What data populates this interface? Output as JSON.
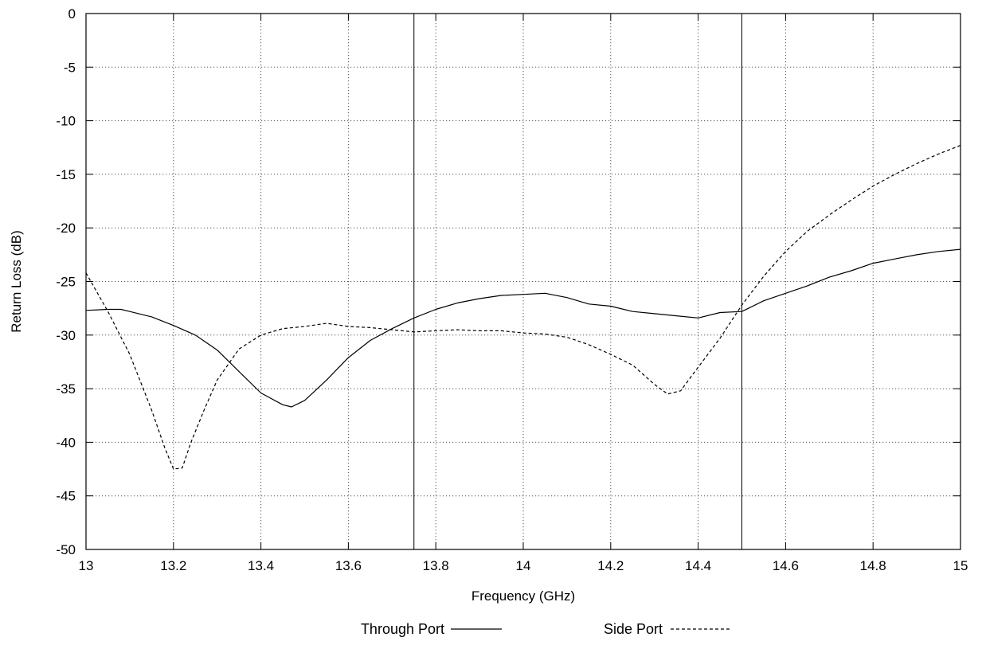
{
  "chart_data": {
    "type": "line",
    "title": "",
    "xlabel": "Frequency (GHz)",
    "ylabel": "Return Loss (dB)",
    "xlim": [
      13,
      15
    ],
    "ylim": [
      -50,
      0
    ],
    "xticks": [
      13,
      13.2,
      13.4,
      13.6,
      13.8,
      14,
      14.2,
      14.4,
      14.6,
      14.8,
      15
    ],
    "yticks": [
      0,
      -5,
      -10,
      -15,
      -20,
      -25,
      -30,
      -35,
      -40,
      -45,
      -50
    ],
    "grid": true,
    "legend_position": "bottom",
    "markers": [
      13.75,
      14.5
    ],
    "series": [
      {
        "name": "Through Port",
        "style": "solid",
        "x": [
          13.0,
          13.05,
          13.08,
          13.1,
          13.15,
          13.2,
          13.25,
          13.3,
          13.35,
          13.4,
          13.45,
          13.47,
          13.5,
          13.55,
          13.6,
          13.65,
          13.7,
          13.75,
          13.8,
          13.85,
          13.9,
          13.95,
          14.0,
          14.05,
          14.1,
          14.15,
          14.2,
          14.25,
          14.3,
          14.35,
          14.4,
          14.45,
          14.5,
          14.55,
          14.6,
          14.65,
          14.7,
          14.75,
          14.8,
          14.85,
          14.9,
          14.95,
          15.0
        ],
        "y": [
          -27.7,
          -27.6,
          -27.6,
          -27.8,
          -28.3,
          -29.1,
          -30.0,
          -31.4,
          -33.4,
          -35.4,
          -36.5,
          -36.7,
          -36.1,
          -34.2,
          -32.1,
          -30.5,
          -29.4,
          -28.4,
          -27.6,
          -27.0,
          -26.6,
          -26.3,
          -26.2,
          -26.1,
          -26.5,
          -27.1,
          -27.3,
          -27.8,
          -28.0,
          -28.2,
          -28.4,
          -27.9,
          -27.8,
          -26.8,
          -26.1,
          -25.4,
          -24.6,
          -24.0,
          -23.3,
          -22.9,
          -22.5,
          -22.2,
          -22.0
        ]
      },
      {
        "name": "Side Port",
        "style": "dashed",
        "x": [
          13.0,
          13.05,
          13.1,
          13.15,
          13.18,
          13.2,
          13.22,
          13.24,
          13.27,
          13.3,
          13.35,
          13.4,
          13.45,
          13.5,
          13.55,
          13.6,
          13.65,
          13.7,
          13.75,
          13.8,
          13.85,
          13.9,
          13.95,
          14.0,
          14.05,
          14.1,
          14.15,
          14.2,
          14.25,
          14.3,
          14.33,
          14.36,
          14.4,
          14.45,
          14.5,
          14.55,
          14.6,
          14.65,
          14.7,
          14.75,
          14.8,
          14.85,
          14.9,
          14.95,
          15.0
        ],
        "y": [
          -24.2,
          -27.8,
          -31.8,
          -37.0,
          -40.5,
          -42.5,
          -42.4,
          -40.0,
          -37.0,
          -34.2,
          -31.3,
          -30.0,
          -29.4,
          -29.2,
          -28.9,
          -29.2,
          -29.3,
          -29.5,
          -29.7,
          -29.6,
          -29.5,
          -29.6,
          -29.6,
          -29.8,
          -29.9,
          -30.2,
          -30.9,
          -31.8,
          -32.8,
          -34.6,
          -35.5,
          -35.2,
          -33.0,
          -30.3,
          -27.2,
          -24.5,
          -22.2,
          -20.3,
          -18.8,
          -17.4,
          -16.1,
          -15.0,
          -14.0,
          -13.1,
          -12.3
        ]
      }
    ]
  }
}
